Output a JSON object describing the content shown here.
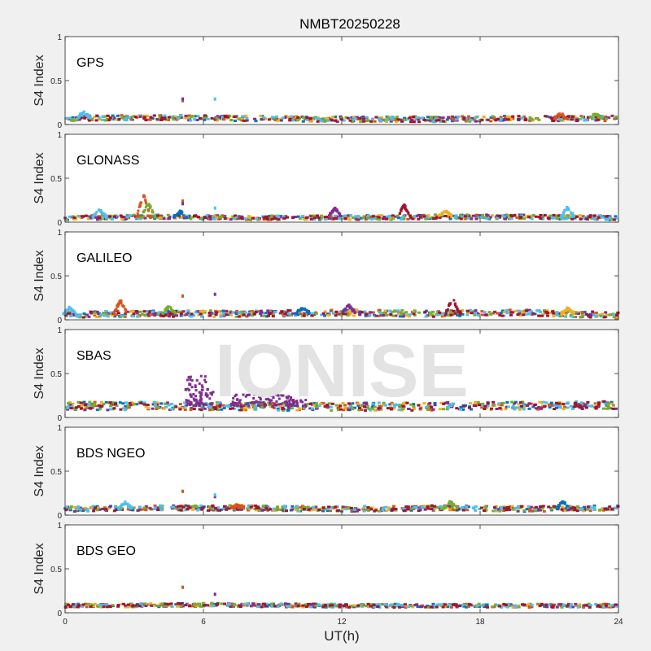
{
  "figure": {
    "title": "NMBT20250228",
    "xlabel": "UT(h)",
    "watermark": "IONISE"
  },
  "colors": {
    "background": "#f0f0f0",
    "axes_bg": "#ffffff",
    "axis": "#262626",
    "watermark": "#e3e3e3",
    "series": [
      "#0072bd",
      "#d95319",
      "#edb120",
      "#7e2f8e",
      "#77ac30",
      "#4dbeee",
      "#a2142f"
    ]
  },
  "chart_data": [
    {
      "type": "scatter",
      "panel_label": "GPS",
      "ylabel": "S4 Index",
      "xlim": [
        0,
        24
      ],
      "ylim": [
        0,
        1
      ],
      "xticks": [
        0,
        6,
        12,
        18,
        24
      ],
      "yticks": [
        0,
        0.5,
        1
      ],
      "baseline": [
        [
          0,
          0.07
        ],
        [
          4,
          0.08
        ],
        [
          8,
          0.07
        ],
        [
          12,
          0.06
        ],
        [
          16,
          0.06
        ],
        [
          20,
          0.07
        ],
        [
          24,
          0.07
        ]
      ],
      "spread": 0.03,
      "bumps": [
        [
          0.8,
          0.14
        ],
        [
          21.5,
          0.12
        ],
        [
          23.0,
          0.12
        ]
      ],
      "outliers": [
        [
          5.1,
          0.27
        ],
        [
          5.1,
          0.29
        ],
        [
          6.5,
          0.29
        ]
      ],
      "grid": false
    },
    {
      "type": "scatter",
      "panel_label": "GLONASS",
      "ylabel": "S4 Index",
      "xlim": [
        0,
        24
      ],
      "ylim": [
        0,
        1
      ],
      "xticks": [
        0,
        6,
        12,
        18,
        24
      ],
      "yticks": [
        0,
        0.5,
        1
      ],
      "baseline": [
        [
          0,
          0.05
        ],
        [
          4,
          0.06
        ],
        [
          8,
          0.05
        ],
        [
          12,
          0.05
        ],
        [
          16,
          0.06
        ],
        [
          20,
          0.06
        ],
        [
          24,
          0.05
        ]
      ],
      "spread": 0.025,
      "bumps": [
        [
          1.5,
          0.14
        ],
        [
          3.4,
          0.31
        ],
        [
          3.6,
          0.22
        ],
        [
          5.0,
          0.12
        ],
        [
          11.7,
          0.16
        ],
        [
          14.7,
          0.19
        ],
        [
          16.5,
          0.13
        ],
        [
          21.8,
          0.17
        ]
      ],
      "outliers": [
        [
          5.1,
          0.24
        ],
        [
          5.1,
          0.21
        ],
        [
          6.5,
          0.16
        ]
      ],
      "grid": false
    },
    {
      "type": "scatter",
      "panel_label": "GALILEO",
      "ylabel": "S4 Index",
      "xlim": [
        0,
        24
      ],
      "ylim": [
        0,
        1
      ],
      "xticks": [
        0,
        6,
        12,
        18,
        24
      ],
      "yticks": [
        0,
        0.5,
        1
      ],
      "baseline": [
        [
          0,
          0.06
        ],
        [
          4,
          0.07
        ],
        [
          8,
          0.07
        ],
        [
          12,
          0.08
        ],
        [
          16,
          0.07
        ],
        [
          20,
          0.08
        ],
        [
          24,
          0.05
        ]
      ],
      "spread": 0.035,
      "bumps": [
        [
          0.2,
          0.14
        ],
        [
          2.4,
          0.22
        ],
        [
          4.5,
          0.15
        ],
        [
          10.3,
          0.13
        ],
        [
          12.3,
          0.16
        ],
        [
          16.8,
          0.25
        ],
        [
          21.8,
          0.13
        ]
      ],
      "outliers": [
        [
          5.1,
          0.27
        ],
        [
          6.5,
          0.29
        ]
      ],
      "grid": false
    },
    {
      "type": "scatter",
      "panel_label": "SBAS",
      "ylabel": "S4 Index",
      "xlim": [
        0,
        24
      ],
      "ylim": [
        0,
        1
      ],
      "xticks": [
        0,
        6,
        12,
        18,
        24
      ],
      "yticks": [
        0,
        0.5,
        1
      ],
      "baseline": [
        [
          0,
          0.13
        ],
        [
          6,
          0.13
        ],
        [
          12,
          0.12
        ],
        [
          18,
          0.13
        ],
        [
          24,
          0.14
        ]
      ],
      "spread": 0.045,
      "bumps": [
        [
          5.7,
          0.48
        ],
        [
          5.5,
          0.38
        ],
        [
          6.0,
          0.32
        ],
        [
          7.6,
          0.26
        ],
        [
          8.6,
          0.3
        ],
        [
          9.4,
          0.28
        ],
        [
          10.0,
          0.2
        ]
      ],
      "outliers": [],
      "grid": false
    },
    {
      "type": "scatter",
      "panel_label": "BDS NGEO",
      "ylabel": "S4 Index",
      "xlim": [
        0,
        24
      ],
      "ylim": [
        0,
        1
      ],
      "xticks": [
        0,
        6,
        12,
        18,
        24
      ],
      "yticks": [
        0,
        0.5,
        1
      ],
      "baseline": [
        [
          0,
          0.07
        ],
        [
          4,
          0.08
        ],
        [
          8,
          0.08
        ],
        [
          12,
          0.07
        ],
        [
          16,
          0.08
        ],
        [
          20,
          0.07
        ],
        [
          24,
          0.08
        ]
      ],
      "spread": 0.03,
      "bumps": [
        [
          2.6,
          0.14
        ],
        [
          7.5,
          0.12
        ],
        [
          16.7,
          0.15
        ],
        [
          21.6,
          0.15
        ]
      ],
      "outliers": [
        [
          5.1,
          0.27
        ],
        [
          6.5,
          0.21
        ],
        [
          6.5,
          0.23
        ]
      ],
      "grid": false
    },
    {
      "type": "scatter",
      "panel_label": "BDS GEO",
      "ylabel": "S4 Index",
      "xlim": [
        0,
        24
      ],
      "ylim": [
        0,
        1
      ],
      "xticks": [
        0,
        6,
        12,
        18,
        24
      ],
      "yticks": [
        0,
        0.5,
        1
      ],
      "baseline": [
        [
          0,
          0.08
        ],
        [
          6,
          0.09
        ],
        [
          12,
          0.08
        ],
        [
          18,
          0.08
        ],
        [
          24,
          0.08
        ]
      ],
      "spread": 0.02,
      "bumps": [],
      "outliers": [
        [
          5.1,
          0.29
        ],
        [
          6.5,
          0.21
        ]
      ],
      "grid": false
    }
  ]
}
